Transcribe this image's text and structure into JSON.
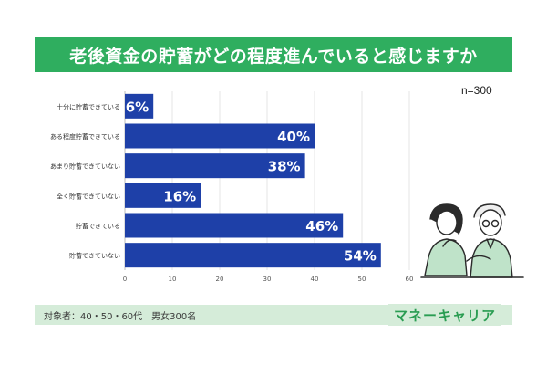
{
  "header": {
    "title": "老後資金の貯蓄がどの程度進んでいると感じますか"
  },
  "sample_note": "n=300",
  "footer": {
    "note": "対象者：40・50・60代　男女300名",
    "brand": "マネーキャリア"
  },
  "colors": {
    "accent": "#2fae5f",
    "bar": "#1e40a8",
    "footer_bg": "#d5ecd9"
  },
  "chart_data": {
    "type": "bar",
    "orientation": "horizontal",
    "title": "",
    "xlabel": "",
    "ylabel": "",
    "categories": [
      "十分に貯蓄できている",
      "ある程度貯蓄できている",
      "あまり貯蓄できていない",
      "全く貯蓄できていない",
      "貯蓄できている",
      "貯蓄できていない"
    ],
    "values": [
      6,
      40,
      38,
      16,
      46,
      54
    ],
    "value_labels": [
      "6%",
      "40%",
      "38%",
      "16%",
      "46%",
      "54%"
    ],
    "xlim": [
      0,
      60
    ],
    "xticks": [
      0,
      10,
      20,
      30,
      40,
      50,
      60
    ],
    "grid": true,
    "legend": "none"
  }
}
